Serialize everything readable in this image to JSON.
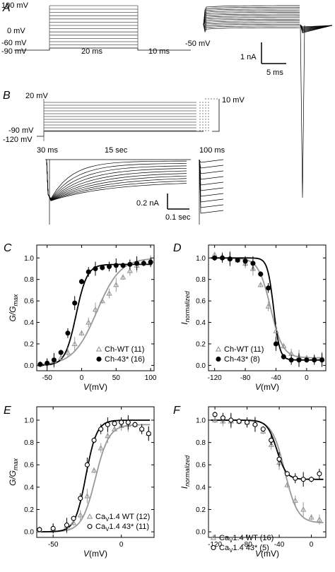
{
  "panelA": {
    "letter": "A",
    "volt_labels": [
      "100 mV",
      "0 mV",
      "-60 mV",
      "-90 mV",
      "-50 mV"
    ],
    "time_labels": [
      "20 ms",
      "10 ms"
    ],
    "scale_current": "1 nA",
    "scale_time": "5 ms"
  },
  "panelB": {
    "letter": "B",
    "volt_labels": [
      "20 mV",
      "10 mV",
      "-90 mV",
      "-120 mV"
    ],
    "time_labels": [
      "30 ms",
      "15 sec",
      "100 ms"
    ],
    "scale_current": "0.2 nA",
    "scale_time": "0.1 sec"
  },
  "chart_data": [
    {
      "panel": "C",
      "type": "scatter",
      "xlabel": "V(mV)",
      "ylabel": "G/Gmax",
      "xlim": [
        -65,
        105
      ],
      "ylim": [
        -0.05,
        1.12
      ],
      "xticks": [
        -50,
        0,
        50,
        100
      ],
      "yticks": [
        0.0,
        0.2,
        0.4,
        0.6,
        0.8,
        1.0
      ],
      "legend": "bottom-right",
      "series": [
        {
          "name": "Ch-WT (11)",
          "marker": "triangle",
          "color": "#999999",
          "x": [
            -60,
            -50,
            -40,
            -30,
            -20,
            -10,
            0,
            10,
            20,
            30,
            40,
            50,
            60,
            70,
            80,
            90,
            100
          ],
          "y": [
            0.01,
            0.02,
            0.04,
            0.07,
            0.12,
            0.2,
            0.3,
            0.4,
            0.52,
            0.6,
            0.67,
            0.75,
            0.82,
            0.88,
            0.93,
            0.96,
            0.98
          ]
        },
        {
          "name": "Ch-43* (16)",
          "marker": "circle",
          "color": "#000000",
          "x": [
            -60,
            -50,
            -40,
            -30,
            -20,
            -10,
            0,
            10,
            20,
            30,
            40,
            50,
            60,
            70,
            80,
            90,
            100
          ],
          "y": [
            0.01,
            0.02,
            0.05,
            0.12,
            0.3,
            0.58,
            0.78,
            0.87,
            0.9,
            0.91,
            0.92,
            0.93,
            0.93,
            0.94,
            0.95,
            0.95,
            0.96
          ]
        }
      ]
    },
    {
      "panel": "D",
      "type": "scatter",
      "xlabel": "V(mV)",
      "ylabel": "Inormalized",
      "xlim": [
        -128,
        25
      ],
      "ylim": [
        -0.05,
        1.12
      ],
      "xticks": [
        -120,
        -80,
        -40,
        0
      ],
      "yticks": [
        0.0,
        0.2,
        0.4,
        0.6,
        0.8,
        1.0
      ],
      "legend": "bottom-left",
      "series": [
        {
          "name": "Ch-WT (11)",
          "marker": "triangle",
          "color": "#999999",
          "x": [
            -120,
            -110,
            -100,
            -90,
            -80,
            -70,
            -60,
            -50,
            -40,
            -30,
            -20,
            -10,
            0,
            10,
            20
          ],
          "y": [
            1.03,
            1.01,
            1.0,
            0.98,
            0.95,
            0.9,
            0.75,
            0.55,
            0.32,
            0.18,
            0.11,
            0.08,
            0.07,
            0.06,
            0.06
          ]
        },
        {
          "name": "Ch-43* (8)",
          "marker": "circle",
          "color": "#000000",
          "x": [
            -120,
            -110,
            -100,
            -90,
            -80,
            -70,
            -60,
            -50,
            -40,
            -30,
            -20,
            -10,
            0,
            10,
            20
          ],
          "y": [
            1.0,
            1.0,
            0.99,
            0.98,
            0.97,
            0.95,
            0.85,
            0.72,
            0.2,
            0.08,
            0.05,
            0.05,
            0.05,
            0.05,
            0.05
          ]
        }
      ]
    },
    {
      "panel": "E",
      "type": "scatter",
      "xlabel": "V(mV)",
      "ylabel": "G/Gmax",
      "xlim": [
        -62,
        24
      ],
      "ylim": [
        -0.05,
        1.12
      ],
      "xticks": [
        -50,
        0
      ],
      "yticks": [
        0.0,
        0.2,
        0.4,
        0.6,
        0.8,
        1.0
      ],
      "legend": "bottom-right",
      "series": [
        {
          "name": "CaV1.4 WT (12)",
          "marker": "triangle",
          "color": "#999999",
          "x": [
            -60,
            -50,
            -40,
            -35,
            -30,
            -25,
            -20,
            -15,
            -10,
            -5,
            0,
            5,
            10,
            15,
            20
          ],
          "y": [
            0.02,
            0.03,
            0.05,
            0.08,
            0.15,
            0.32,
            0.55,
            0.75,
            0.86,
            0.92,
            0.95,
            0.96,
            0.96,
            0.92,
            0.88
          ]
        },
        {
          "name": "CaV1.4 43* (11)",
          "marker": "circle",
          "color": "#000000",
          "x": [
            -60,
            -50,
            -40,
            -35,
            -30,
            -25,
            -20,
            -15,
            -10,
            -5,
            0,
            5,
            10,
            15,
            20
          ],
          "y": [
            0.02,
            0.03,
            0.06,
            0.12,
            0.3,
            0.6,
            0.82,
            0.92,
            0.96,
            0.97,
            0.98,
            0.98,
            0.96,
            0.92,
            0.88
          ]
        }
      ]
    },
    {
      "panel": "F",
      "type": "scatter",
      "xlabel": "V(mV)",
      "ylabel": "Inormalized",
      "xlim": [
        -128,
        18
      ],
      "ylim": [
        -0.05,
        1.12
      ],
      "xticks": [
        -120,
        -80,
        -40,
        0
      ],
      "yticks": [
        0.0,
        0.2,
        0.4,
        0.6,
        0.8,
        1.0
      ],
      "legend": "bottom-left",
      "series": [
        {
          "name": "CaV1.4 WT (16)",
          "marker": "triangle",
          "color": "#999999",
          "x": [
            -120,
            -110,
            -100,
            -90,
            -80,
            -70,
            -60,
            -50,
            -40,
            -30,
            -20,
            -10,
            0,
            10
          ],
          "y": [
            1.0,
            0.99,
            0.99,
            0.99,
            0.98,
            0.97,
            0.9,
            0.78,
            0.62,
            0.42,
            0.28,
            0.2,
            0.13,
            0.11
          ]
        },
        {
          "name": "CaV1.4 43* (5)",
          "marker": "circle",
          "color": "#000000",
          "x": [
            -120,
            -110,
            -100,
            -90,
            -80,
            -70,
            -60,
            -50,
            -40,
            -30,
            -20,
            -10,
            0,
            10
          ],
          "y": [
            1.05,
            1.02,
            1.0,
            0.99,
            0.98,
            0.96,
            0.92,
            0.82,
            0.65,
            0.52,
            0.48,
            0.47,
            0.47,
            0.52
          ]
        }
      ]
    }
  ]
}
